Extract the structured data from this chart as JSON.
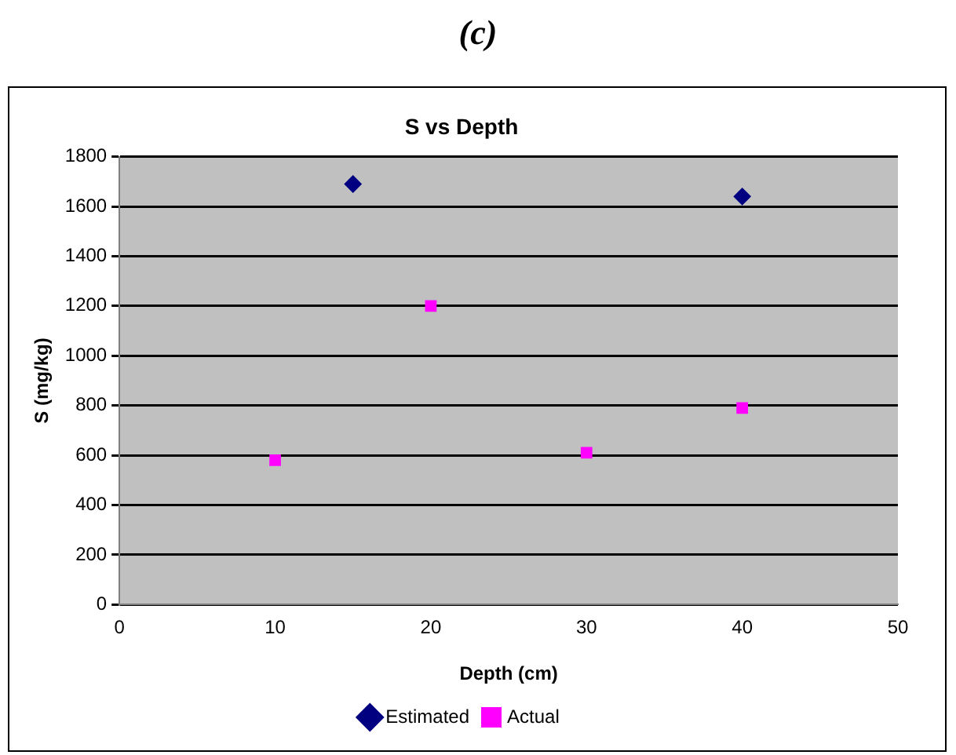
{
  "chart_data": {
    "type": "scatter",
    "title": "S vs Depth",
    "annotations": [
      "(c)"
    ],
    "xlabel": "Depth (cm)",
    "ylabel": "S (mg/kg)",
    "xlim": [
      0,
      50
    ],
    "xticks": [
      0,
      10,
      20,
      30,
      40,
      50
    ],
    "ylim": [
      0,
      1800
    ],
    "yticks": [
      0,
      200,
      400,
      600,
      800,
      1000,
      1200,
      1400,
      1600,
      1800
    ],
    "grid": "y",
    "legend": "bottom",
    "series": [
      {
        "name": "Estimated",
        "color": "#000080",
        "marker": "diamond",
        "x": [
          15,
          40
        ],
        "values": [
          1690,
          1640
        ]
      },
      {
        "name": "Actual",
        "color": "#ff00ff",
        "marker": "square",
        "x": [
          10,
          20,
          30,
          40
        ],
        "values": [
          580,
          1200,
          610,
          790
        ]
      }
    ]
  }
}
